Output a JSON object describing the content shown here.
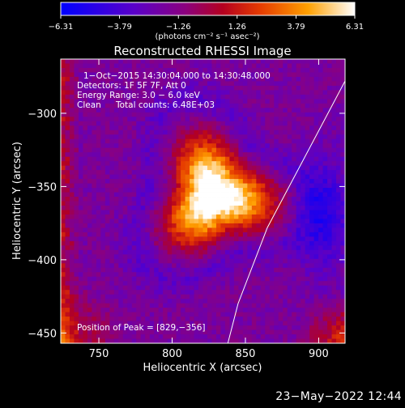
{
  "chart_data": {
    "type": "heatmap",
    "title": "Reconstructed RHESSI Image",
    "xlabel": "Heliocentric X (arcsec)",
    "ylabel": "Heliocentric Y (arcsec)",
    "xlim": [
      724,
      918
    ],
    "ylim": [
      -457,
      -263
    ],
    "x_ticks": [
      750,
      800,
      850,
      900
    ],
    "y_ticks": [
      -300,
      -350,
      -400,
      -450
    ],
    "x_tick_labels": [
      "750",
      "800",
      "850",
      "900"
    ],
    "y_tick_labels": [
      "−300",
      "−350",
      "−400",
      "−450"
    ],
    "colorbar": {
      "range": [
        -6.31,
        6.31
      ],
      "ticks": [
        -6.31,
        -3.79,
        -1.26,
        1.26,
        3.79,
        6.31
      ],
      "tick_labels": [
        "−6.31",
        "−3.79",
        "−1.26",
        "1.26",
        "3.79",
        "6.31"
      ],
      "units_label": "(photons cm⁻² s⁻¹ asec⁻²)"
    },
    "annotations": [
      "1−Oct−2015 14:30:04.000 to 14:30:48.000",
      "Detectors: 1F 5F 7F, Att 0",
      "Energy Range: 3.0 − 6.0 keV",
      "Clean",
      "Total counts: 6.48E+03"
    ],
    "peak_label": "Position of Peak = [829,−356]",
    "peak": [
      829,
      -356
    ],
    "peak_value": 6.31,
    "limb_points": [
      [
        918,
        -278
      ],
      [
        865,
        -378
      ],
      [
        845,
        -430
      ],
      [
        838,
        -457
      ]
    ],
    "grid": false,
    "legend": "none"
  },
  "footer": {
    "timestamp": "23−May−2022 12:44"
  },
  "colors": {
    "background": "#000000",
    "text": "#ffffff",
    "colormap": [
      "#0000ff",
      "#3c00c8",
      "#6e00a0",
      "#960060",
      "#c81400",
      "#ff6400",
      "#ffc800",
      "#ffffff"
    ]
  }
}
